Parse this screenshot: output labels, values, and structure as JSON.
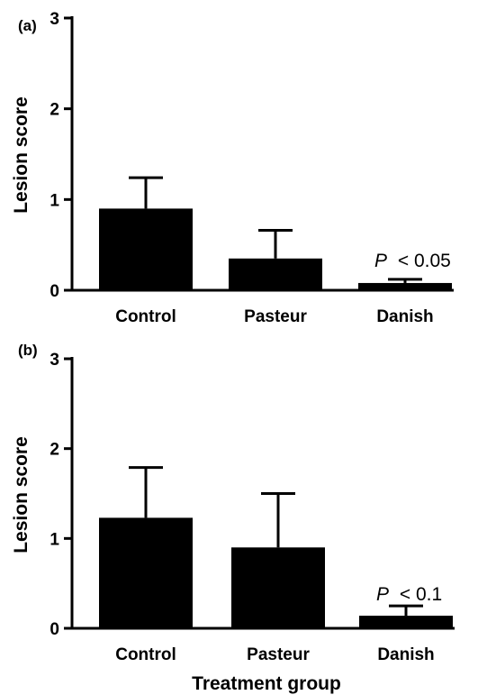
{
  "chart_data": [
    {
      "type": "bar",
      "panel_label": "(a)",
      "categories": [
        "Control",
        "Pasteur",
        "Danish"
      ],
      "values": [
        0.9,
        0.35,
        0.08
      ],
      "error_upper": [
        1.24,
        0.66,
        0.12
      ],
      "ylabel": "Lesion score",
      "xlabel": "",
      "ylim": [
        0,
        3
      ],
      "yticks": [
        "0",
        "1",
        "2",
        "3"
      ],
      "annotation": {
        "category": "Danish",
        "italic": "P",
        "text": "< 0.05"
      },
      "color": "#000000"
    },
    {
      "type": "bar",
      "panel_label": "(b)",
      "categories": [
        "Control",
        "Pasteur",
        "Danish"
      ],
      "values": [
        1.23,
        0.9,
        0.14
      ],
      "error_upper": [
        1.79,
        1.5,
        0.25
      ],
      "ylabel": "Lesion score",
      "xlabel": "Treatment group",
      "ylim": [
        0,
        3
      ],
      "yticks": [
        "0",
        "1",
        "2",
        "3"
      ],
      "annotation": {
        "category": "Danish",
        "italic": "P",
        "text": "< 0.1"
      },
      "color": "#000000"
    }
  ]
}
